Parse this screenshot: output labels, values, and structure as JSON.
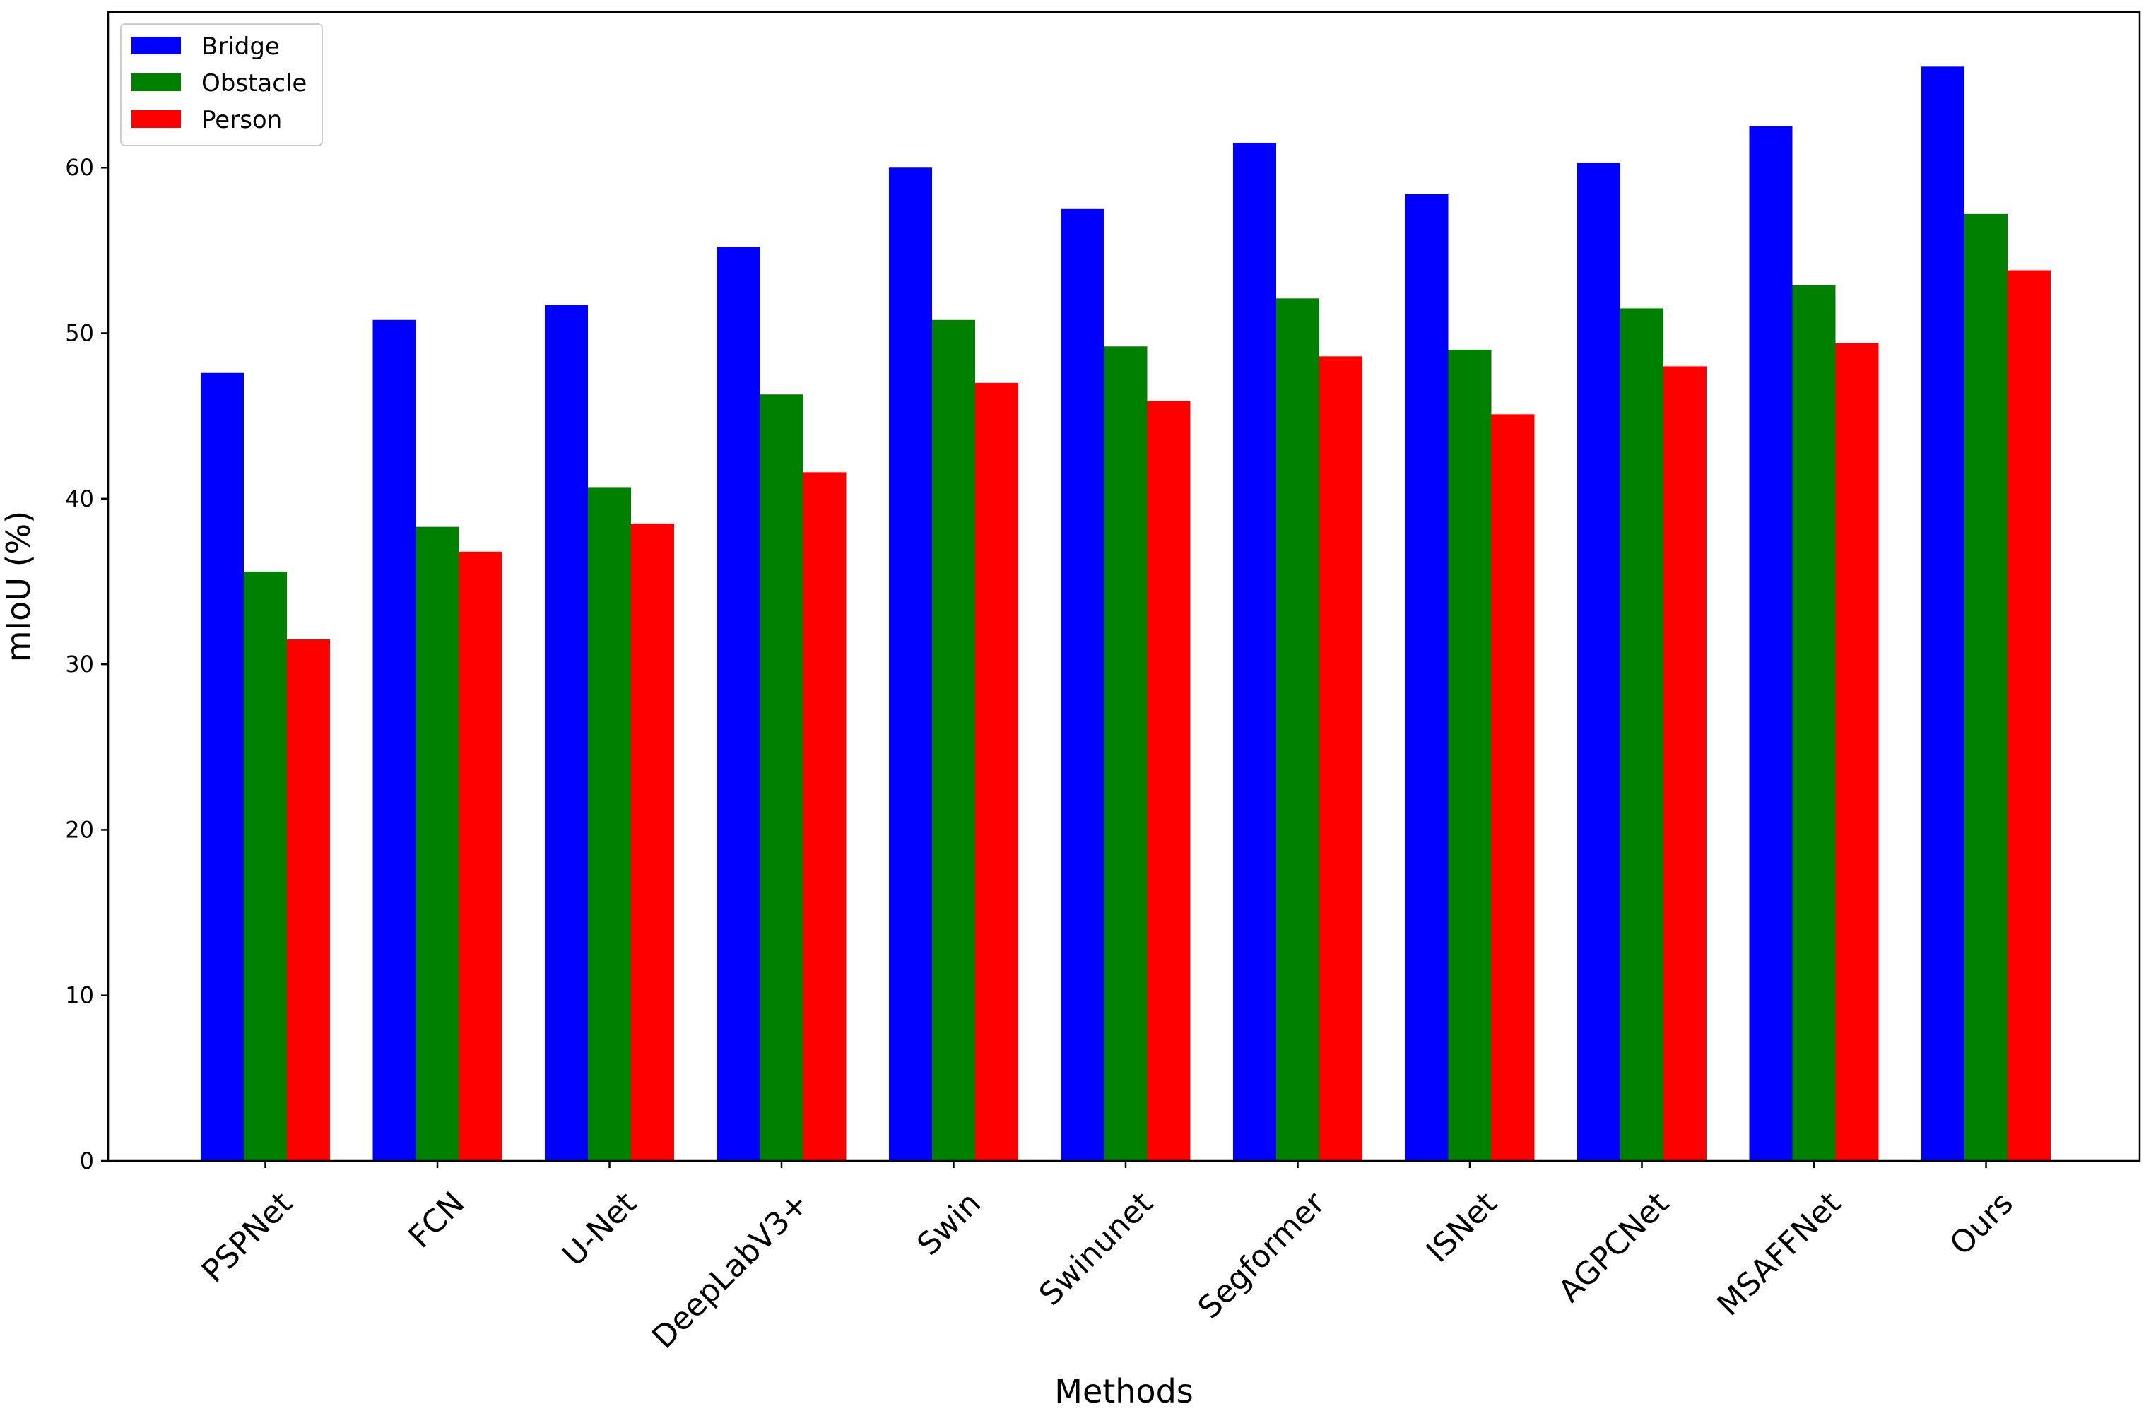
{
  "chart_data": {
    "type": "bar",
    "title": "",
    "xlabel": "Methods",
    "ylabel": "mIoU (%)",
    "categories": [
      "PSPNet",
      "FCN",
      "U-Net",
      "DeepLabV3+",
      "Swin",
      "Swinunet",
      "Segformer",
      "ISNet",
      "AGPCNet",
      "MSAFFNet",
      "Ours"
    ],
    "series": [
      {
        "name": "Bridge",
        "color": "#0000ff",
        "values": [
          47.6,
          50.8,
          51.7,
          55.2,
          60.0,
          57.5,
          61.5,
          58.4,
          60.3,
          62.5,
          66.1
        ]
      },
      {
        "name": "Obstacle",
        "color": "#008000",
        "values": [
          35.6,
          38.3,
          40.7,
          46.3,
          50.8,
          49.2,
          52.1,
          49.0,
          51.5,
          52.9,
          57.2
        ]
      },
      {
        "name": "Person",
        "color": "#ff0000",
        "values": [
          31.5,
          36.8,
          38.5,
          41.6,
          47.0,
          45.9,
          48.6,
          45.1,
          48.0,
          49.4,
          53.8
        ]
      }
    ],
    "ylim": [
      0,
      69.4
    ],
    "yticks": [
      0,
      10,
      20,
      30,
      40,
      50,
      60
    ],
    "grid": false,
    "legend_position": "top-left"
  }
}
